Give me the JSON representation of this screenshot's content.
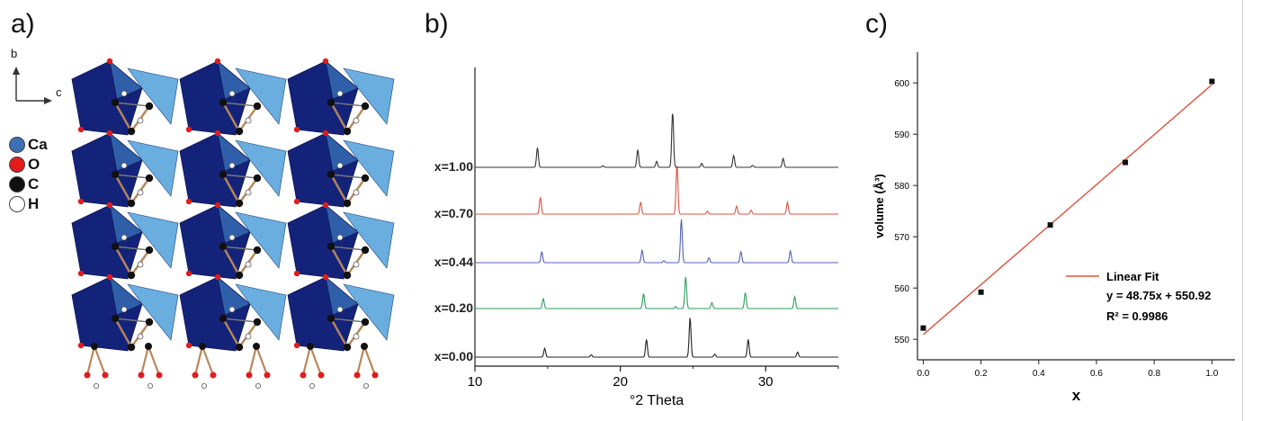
{
  "panels": {
    "a": {
      "label": "a)"
    },
    "b": {
      "label": "b)"
    },
    "c": {
      "label": "c)"
    }
  },
  "structure": {
    "axis_b": "b",
    "axis_c": "c",
    "legend": [
      {
        "symbol": "Ca",
        "color": "#3c6fb5"
      },
      {
        "symbol": "O",
        "color": "#e31b1b"
      },
      {
        "symbol": "C",
        "color": "#111111"
      },
      {
        "symbol": "H",
        "color": "#ffffff"
      }
    ],
    "colors": {
      "poly_dark": "#14237a",
      "poly_mid": "#2f5fa8",
      "poly_light": "#6aaee0",
      "bond": "#b8865a"
    }
  },
  "chart_data": [
    {
      "id": "b",
      "type": "line",
      "xlabel": "°2 Theta",
      "x_ticks": [
        10,
        20,
        30
      ],
      "xlim": [
        10,
        35
      ],
      "series": [
        {
          "name": "x=0.00",
          "color": "#222222",
          "peaks": [
            [
              14.8,
              0.45
            ],
            [
              18.0,
              0.12
            ],
            [
              21.8,
              0.9
            ],
            [
              24.8,
              2.0
            ],
            [
              26.5,
              0.15
            ],
            [
              28.8,
              0.9
            ],
            [
              32.2,
              0.25
            ]
          ]
        },
        {
          "name": "x=0.20",
          "color": "#2e9e5b",
          "peaks": [
            [
              14.7,
              0.5
            ],
            [
              21.6,
              0.75
            ],
            [
              23.8,
              0.1
            ],
            [
              24.5,
              1.6
            ],
            [
              26.3,
              0.3
            ],
            [
              28.6,
              0.8
            ],
            [
              32.0,
              0.6
            ]
          ]
        },
        {
          "name": "x=0.44",
          "color": "#5060b8",
          "peaks": [
            [
              14.6,
              0.55
            ],
            [
              21.5,
              0.65
            ],
            [
              23.0,
              0.1
            ],
            [
              24.2,
              2.2
            ],
            [
              26.1,
              0.25
            ],
            [
              28.3,
              0.55
            ],
            [
              31.7,
              0.6
            ]
          ]
        },
        {
          "name": "x=0.70",
          "color": "#e0533d",
          "peaks": [
            [
              14.5,
              0.85
            ],
            [
              21.4,
              0.6
            ],
            [
              23.9,
              2.5
            ],
            [
              26.0,
              0.15
            ],
            [
              28.0,
              0.4
            ],
            [
              29.0,
              0.2
            ],
            [
              31.5,
              0.6
            ]
          ]
        },
        {
          "name": "x=1.00",
          "color": "#333333",
          "peaks": [
            [
              14.3,
              1.0
            ],
            [
              18.8,
              0.08
            ],
            [
              21.2,
              0.9
            ],
            [
              22.5,
              0.3
            ],
            [
              23.6,
              2.8
            ],
            [
              25.6,
              0.2
            ],
            [
              27.8,
              0.6
            ],
            [
              29.1,
              0.1
            ],
            [
              31.2,
              0.45
            ]
          ]
        }
      ]
    },
    {
      "id": "c",
      "type": "scatter",
      "xlabel": "x",
      "ylabel": "volume (Å³)",
      "x_ticks": [
        "0.0",
        "0.2",
        "0.4",
        "0.6",
        "0.8",
        "1.0"
      ],
      "y_ticks": [
        "550",
        "560",
        "570",
        "580",
        "590",
        "600"
      ],
      "xlim": [
        -0.02,
        1.08
      ],
      "ylim": [
        546,
        606
      ],
      "x": [
        0.0,
        0.2,
        0.44,
        0.7,
        1.0
      ],
      "y": [
        552.2,
        559.2,
        572.3,
        584.5,
        600.3
      ],
      "fit": {
        "slope": 48.75,
        "intercept": 550.92,
        "color": "#e0533d"
      },
      "legend": {
        "name": "Linear Fit",
        "equation": "y = 48.75x + 550.92",
        "r2": "R² = 0.9986"
      }
    }
  ]
}
